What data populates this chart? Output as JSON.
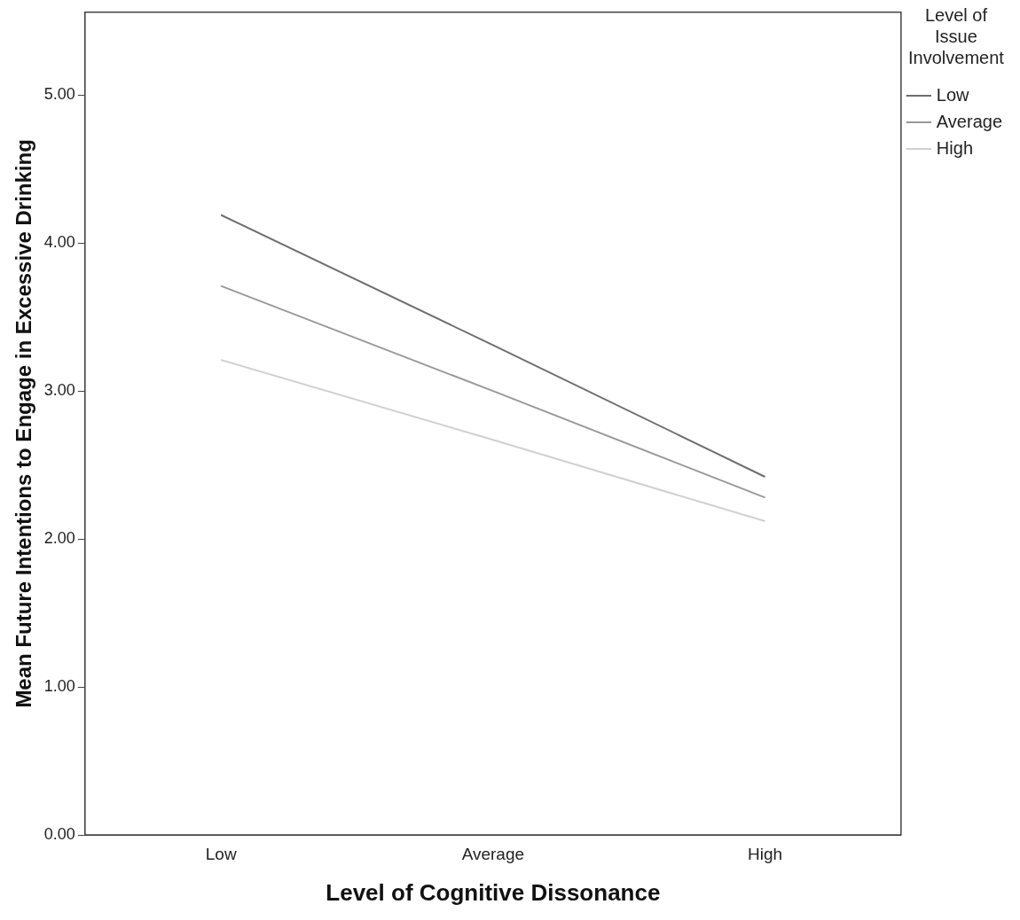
{
  "chart_data": {
    "type": "line",
    "xlabel": "Level of Cognitive Dissonance",
    "ylabel": "Mean Future Intentions to Engage in Excessive Drinking",
    "legend_title": "Level of Issue Involvement",
    "categories": [
      "Low",
      "Average",
      "High"
    ],
    "series": [
      {
        "name": "Low",
        "color": "#6e6e6e",
        "values": [
          4.19,
          3.31,
          2.42
        ]
      },
      {
        "name": "Average",
        "color": "#999999",
        "values": [
          3.71,
          3.0,
          2.28
        ]
      },
      {
        "name": "High",
        "color": "#d0d0d0",
        "values": [
          3.21,
          2.67,
          2.12
        ]
      }
    ],
    "ylim": [
      0,
      5.56
    ],
    "yticks": [
      {
        "value": 0,
        "label": "0.00"
      },
      {
        "value": 1,
        "label": "1.00"
      },
      {
        "value": 2,
        "label": "2.00"
      },
      {
        "value": 3,
        "label": "3.00"
      },
      {
        "value": 4,
        "label": "4.00"
      },
      {
        "value": 5,
        "label": "5.00"
      }
    ],
    "grid": false,
    "legend": "top right",
    "marker": "none",
    "line_style": "solid"
  }
}
